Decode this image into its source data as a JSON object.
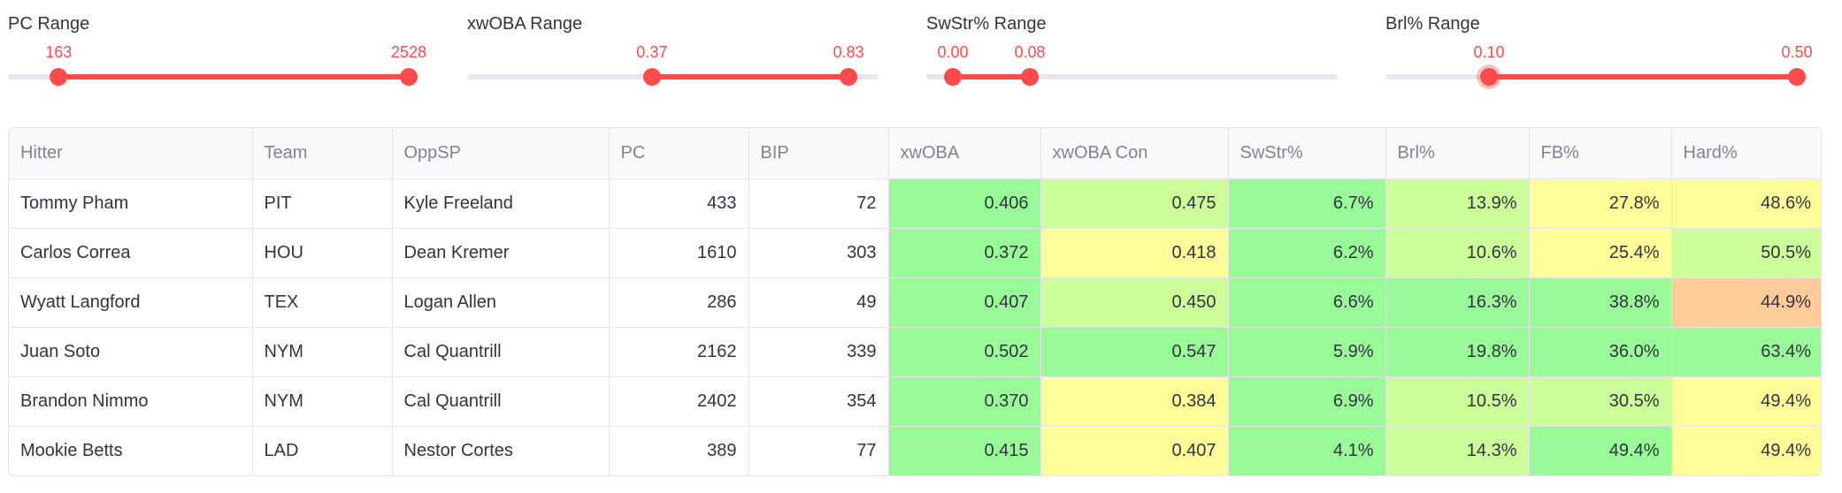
{
  "sliders": [
    {
      "label": "PC Range",
      "low_label": "163",
      "high_label": "2528",
      "min": 0,
      "max": 2600,
      "low": 163,
      "high": 2528,
      "focused": null
    },
    {
      "label": "xwOBA Range",
      "low_label": "0.37",
      "high_label": "0.83",
      "min": 0.0,
      "max": 0.9,
      "low": 0.37,
      "high": 0.83,
      "focused": null
    },
    {
      "label": "SwStr% Range",
      "low_label": "0.00",
      "high_label": "0.08",
      "min": 0.0,
      "max": 0.4,
      "low": 0.0,
      "high": 0.08,
      "focused": null
    },
    {
      "label": "Brl% Range",
      "low_label": "0.10",
      "high_label": "0.50",
      "min": 0.0,
      "max": 0.5,
      "low": 0.1,
      "high": 0.5,
      "focused": "low"
    }
  ],
  "colors": {
    "accent": "#ff4b4b",
    "green": "#98fb98",
    "light_green": "#ccff99",
    "yellow": "#ffff99",
    "orange": "#ffcc99"
  },
  "table": {
    "columns": [
      "Hitter",
      "Team",
      "OppSP",
      "PC",
      "BIP",
      "xwOBA",
      "xwOBA Con",
      "SwStr%",
      "Brl%",
      "FB%",
      "Hard%"
    ],
    "numeric": [
      false,
      false,
      false,
      true,
      true,
      true,
      true,
      true,
      true,
      true,
      true
    ],
    "rows": [
      {
        "cells": [
          "Tommy Pham",
          "PIT",
          "Kyle Freeland",
          "433",
          "72",
          "0.406",
          "0.475",
          "6.7%",
          "13.9%",
          "27.8%",
          "48.6%"
        ],
        "colors": [
          "",
          "",
          "",
          "",
          "",
          "green",
          "light_green",
          "green",
          "light_green",
          "yellow",
          "yellow"
        ]
      },
      {
        "cells": [
          "Carlos Correa",
          "HOU",
          "Dean Kremer",
          "1610",
          "303",
          "0.372",
          "0.418",
          "6.2%",
          "10.6%",
          "25.4%",
          "50.5%"
        ],
        "colors": [
          "",
          "",
          "",
          "",
          "",
          "green",
          "yellow",
          "green",
          "light_green",
          "yellow",
          "light_green"
        ]
      },
      {
        "cells": [
          "Wyatt Langford",
          "TEX",
          "Logan Allen",
          "286",
          "49",
          "0.407",
          "0.450",
          "6.6%",
          "16.3%",
          "38.8%",
          "44.9%"
        ],
        "colors": [
          "",
          "",
          "",
          "",
          "",
          "green",
          "light_green",
          "green",
          "green",
          "green",
          "orange"
        ]
      },
      {
        "cells": [
          "Juan Soto",
          "NYM",
          "Cal Quantrill",
          "2162",
          "339",
          "0.502",
          "0.547",
          "5.9%",
          "19.8%",
          "36.0%",
          "63.4%"
        ],
        "colors": [
          "",
          "",
          "",
          "",
          "",
          "green",
          "green",
          "green",
          "green",
          "green",
          "green"
        ]
      },
      {
        "cells": [
          "Brandon Nimmo",
          "NYM",
          "Cal Quantrill",
          "2402",
          "354",
          "0.370",
          "0.384",
          "6.9%",
          "10.5%",
          "30.5%",
          "49.4%"
        ],
        "colors": [
          "",
          "",
          "",
          "",
          "",
          "green",
          "yellow",
          "green",
          "light_green",
          "light_green",
          "yellow"
        ]
      },
      {
        "cells": [
          "Mookie Betts",
          "LAD",
          "Nestor Cortes",
          "389",
          "77",
          "0.415",
          "0.407",
          "4.1%",
          "14.3%",
          "49.4%",
          "49.4%"
        ],
        "colors": [
          "",
          "",
          "",
          "",
          "",
          "green",
          "yellow",
          "green",
          "light_green",
          "green",
          "yellow"
        ]
      }
    ]
  }
}
